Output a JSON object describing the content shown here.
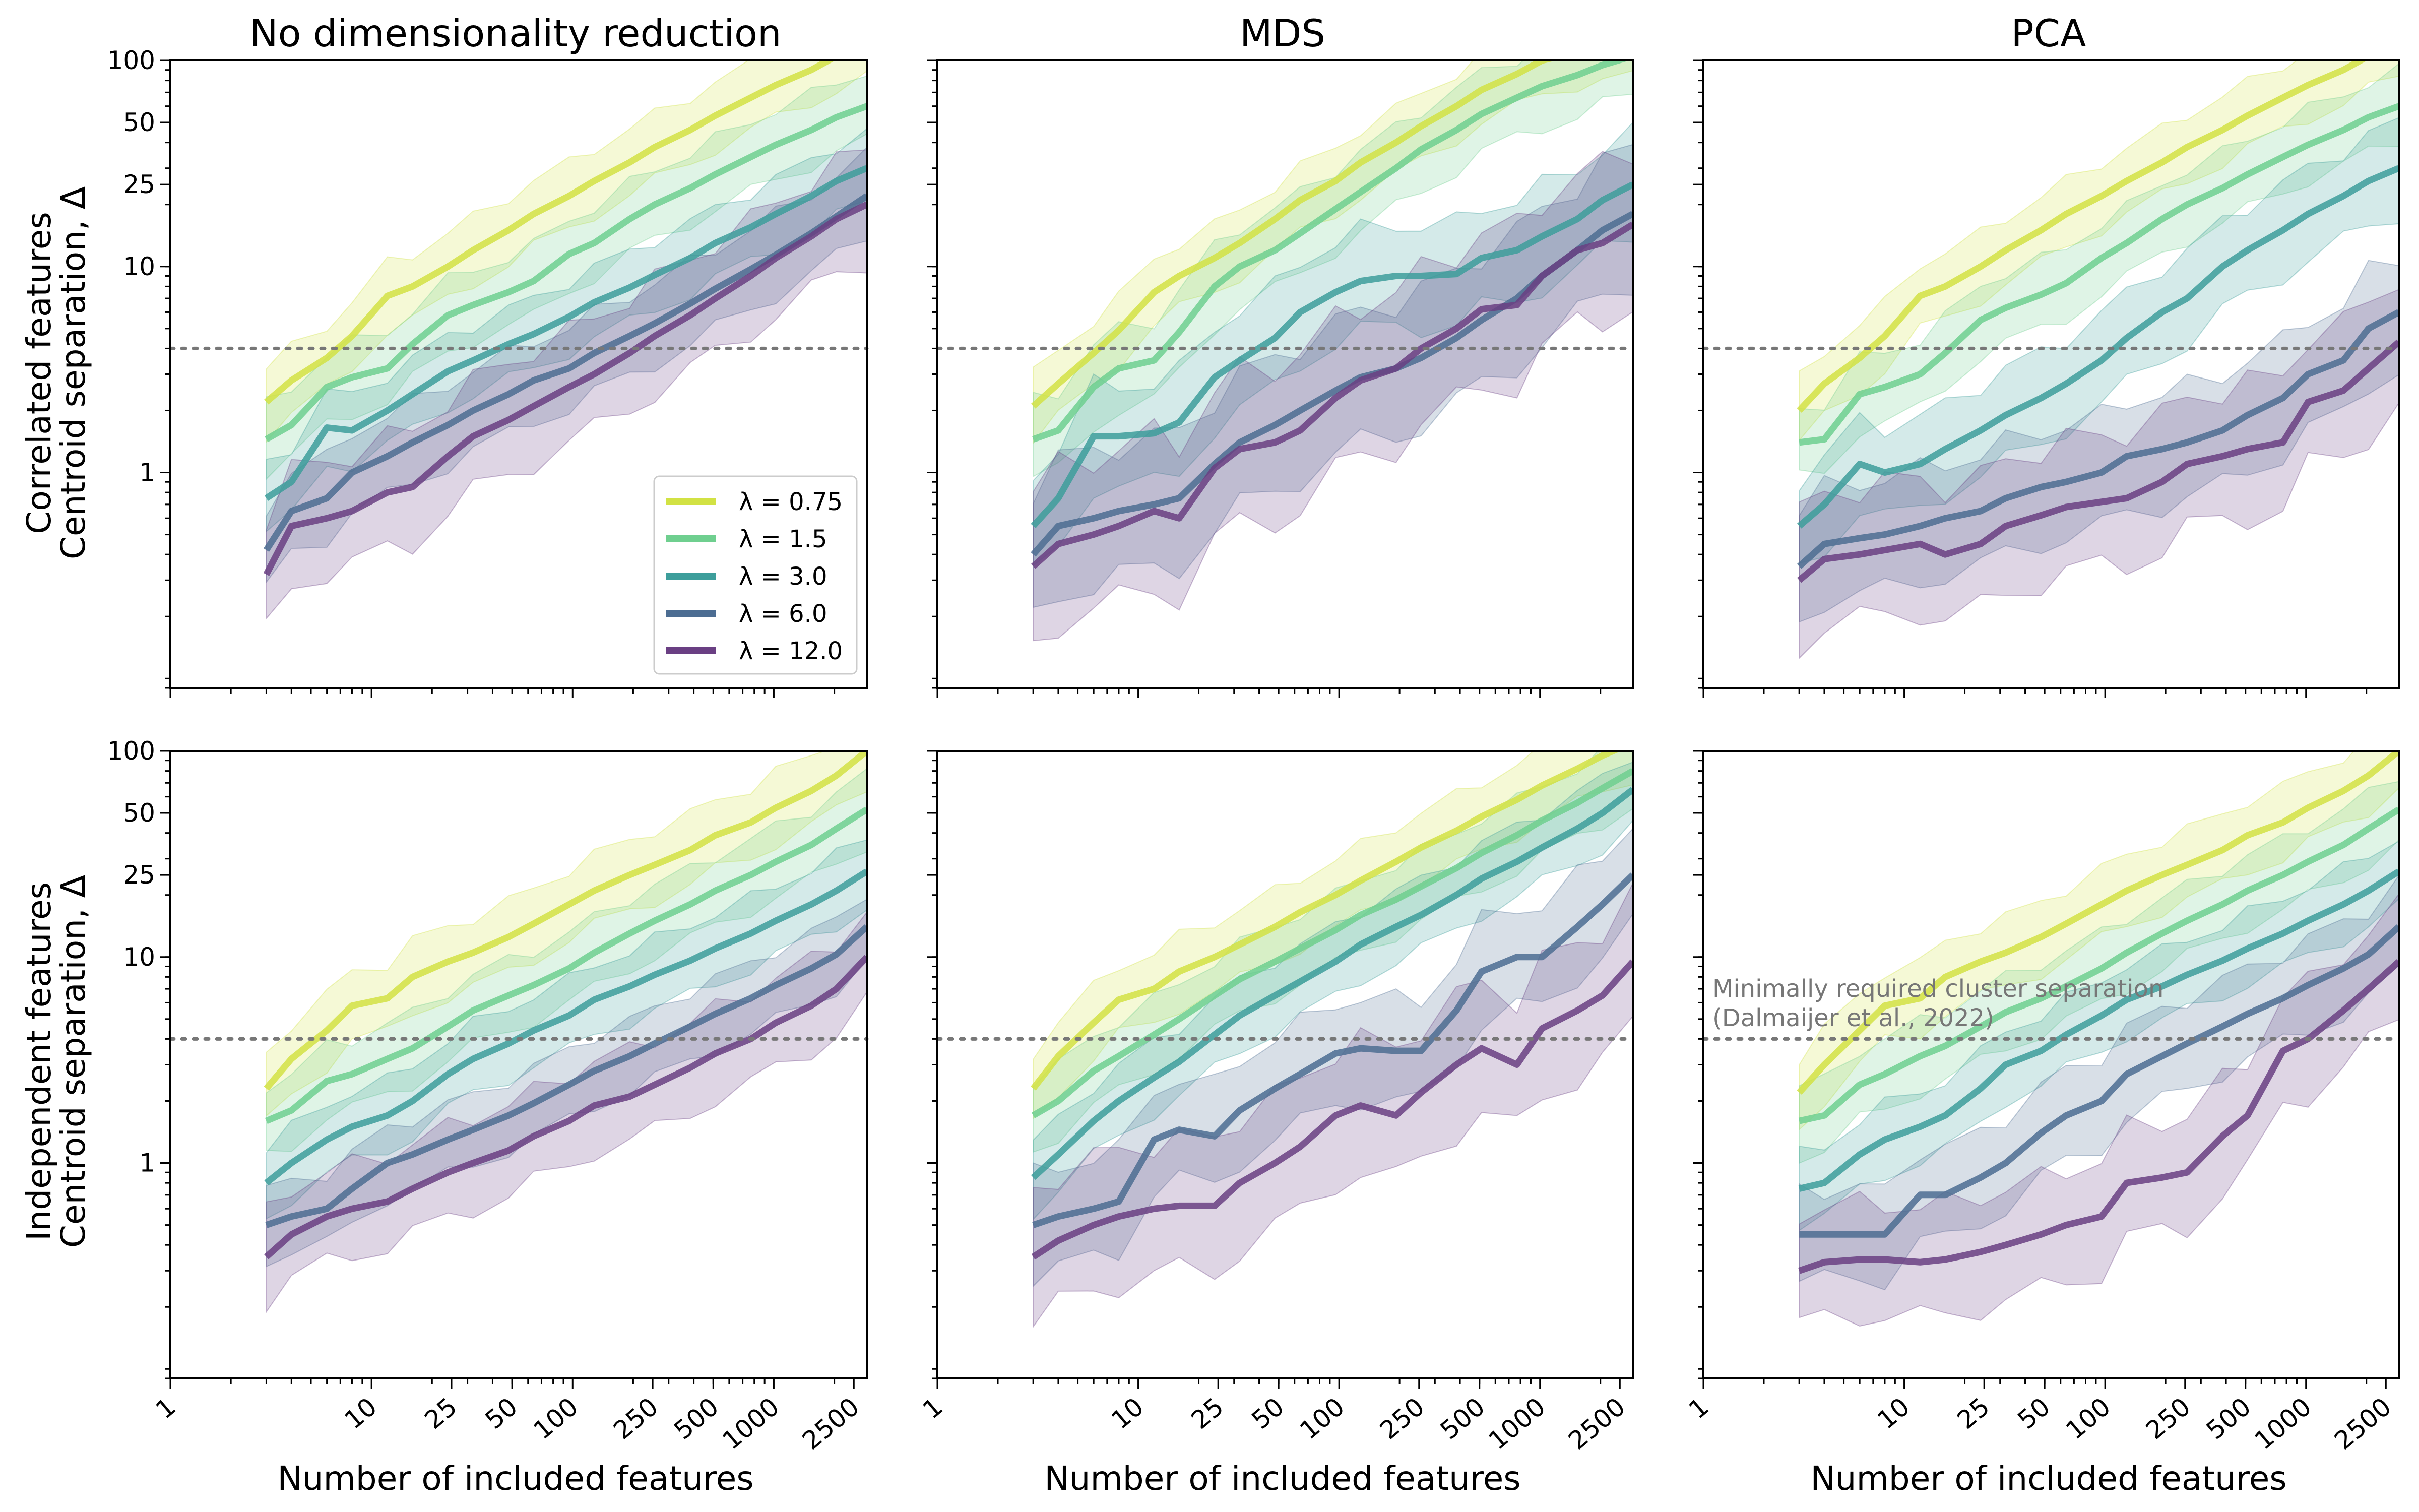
{
  "figure": {
    "col_titles": [
      "No dimensionality reduction",
      "MDS",
      "PCA"
    ],
    "row_labels": [
      [
        "Correlated features",
        "Centroid separation, Δ"
      ],
      [
        "Independent features",
        "Centroid separation, Δ"
      ]
    ],
    "xlabel": "Number of included features",
    "x_ticks": [
      1,
      10,
      25,
      50,
      100,
      250,
      500,
      1000,
      2500
    ],
    "x_tick_labels": [
      "1",
      "10",
      "25",
      "50",
      "100",
      "250",
      "500",
      "1000",
      "2500"
    ],
    "y_ticks": [
      1,
      10,
      25,
      50,
      100
    ],
    "y_tick_labels": [
      "1",
      "10",
      "25",
      "50",
      "100"
    ],
    "legend": [
      {
        "label": "λ = 0.75",
        "color": "#d2e244"
      },
      {
        "label": "λ = 1.5",
        "color": "#6fcf8f"
      },
      {
        "label": "λ = 3.0",
        "color": "#3d9e9b"
      },
      {
        "label": "λ = 6.0",
        "color": "#4c6d92"
      },
      {
        "label": "λ = 12.0",
        "color": "#6a3f83"
      }
    ],
    "annotation": {
      "line1": "Minimally required cluster separation",
      "line2": "(Dalmaijer et al., 2022)"
    }
  },
  "chart_data": [
    {
      "type": "line",
      "title": "No dimensionality reduction",
      "row": "Correlated features",
      "xlabel": "",
      "ylabel": "Centroid separation, Δ",
      "xscale": "log",
      "yscale": "log",
      "xlim": [
        1,
        2900
      ],
      "ylim": [
        0.09,
        100
      ],
      "reference_line": 4,
      "legend_position": "lower right",
      "x": [
        3,
        4,
        6,
        8,
        12,
        16,
        24,
        32,
        48,
        64,
        96,
        128,
        192,
        256,
        384,
        512,
        768,
        1024,
        1536,
        2048,
        2900
      ],
      "series": [
        {
          "name": "λ = 0.75",
          "values": [
            2.2,
            2.8,
            3.6,
            4.6,
            7.2,
            8,
            10,
            12,
            15,
            18,
            22,
            26,
            32,
            38,
            46,
            54,
            66,
            76,
            90,
            105,
            120
          ],
          "band": 0.28
        },
        {
          "name": "λ = 1.5",
          "values": [
            1.45,
            1.7,
            2.6,
            2.9,
            3.2,
            4.2,
            5.8,
            6.5,
            7.5,
            8.5,
            11.5,
            13,
            17,
            20,
            24,
            28,
            34,
            39,
            46,
            53,
            60
          ],
          "band": 0.3
        },
        {
          "name": "λ = 3.0",
          "values": [
            0.75,
            0.9,
            1.65,
            1.6,
            2,
            2.4,
            3.1,
            3.5,
            4.2,
            4.7,
            5.7,
            6.7,
            7.9,
            9.1,
            11,
            13,
            15.5,
            18,
            22,
            26,
            30
          ],
          "band": 0.3
        },
        {
          "name": "λ = 6.0",
          "values": [
            0.42,
            0.65,
            0.75,
            1,
            1.2,
            1.4,
            1.7,
            2,
            2.4,
            2.8,
            3.2,
            3.8,
            4.6,
            5.3,
            6.6,
            7.8,
            9.7,
            11.4,
            14.5,
            17.5,
            22
          ],
          "band": 0.35
        },
        {
          "name": "λ = 12.0",
          "values": [
            0.32,
            0.55,
            0.6,
            0.65,
            0.8,
            0.85,
            1.2,
            1.5,
            1.8,
            2.1,
            2.6,
            3,
            3.8,
            4.6,
            5.8,
            7,
            9,
            11,
            14,
            17,
            20
          ],
          "band": 0.5
        }
      ]
    },
    {
      "type": "line",
      "title": "MDS",
      "row": "Correlated features",
      "xlabel": "",
      "ylabel": "",
      "xscale": "log",
      "yscale": "log",
      "xlim": [
        1,
        2900
      ],
      "ylim": [
        0.09,
        100
      ],
      "reference_line": 4,
      "x": [
        3,
        4,
        6,
        8,
        12,
        16,
        24,
        32,
        48,
        64,
        96,
        128,
        192,
        256,
        384,
        512,
        768,
        1024,
        1536,
        2048,
        2900
      ],
      "series": [
        {
          "name": "λ = 0.75",
          "values": [
            2.1,
            2.7,
            3.8,
            4.9,
            7.5,
            9,
            11,
            13,
            17,
            21,
            26,
            32,
            40,
            48,
            60,
            72,
            86,
            100,
            110,
            115,
            120
          ],
          "band": 0.28
        },
        {
          "name": "λ = 1.5",
          "values": [
            1.45,
            1.6,
            2.6,
            3.2,
            3.5,
            4.8,
            8,
            10,
            12,
            14.5,
            19,
            23,
            30,
            37,
            46,
            55,
            66,
            75,
            85,
            95,
            105
          ],
          "band": 0.35
        },
        {
          "name": "λ = 3.0",
          "values": [
            0.55,
            0.75,
            1.5,
            1.5,
            1.55,
            1.75,
            2.9,
            3.5,
            4.5,
            6,
            7.5,
            8.5,
            9,
            9,
            9.2,
            11,
            12,
            14,
            17,
            21,
            25
          ],
          "band": 0.45
        },
        {
          "name": "λ = 6.0",
          "values": [
            0.4,
            0.55,
            0.6,
            0.65,
            0.7,
            0.75,
            1.1,
            1.4,
            1.7,
            2,
            2.5,
            2.9,
            3.2,
            3.6,
            4.5,
            5.5,
            7,
            9,
            12,
            15,
            18
          ],
          "band": 0.6
        },
        {
          "name": "λ = 12.0",
          "values": [
            0.35,
            0.45,
            0.5,
            0.55,
            0.65,
            0.6,
            1.05,
            1.3,
            1.4,
            1.6,
            2.3,
            2.8,
            3.2,
            4,
            5,
            6.2,
            6.5,
            9,
            12,
            13,
            16
          ],
          "band": 0.7
        }
      ]
    },
    {
      "type": "line",
      "title": "PCA",
      "row": "Correlated features",
      "xlabel": "",
      "ylabel": "",
      "xscale": "log",
      "yscale": "log",
      "xlim": [
        1,
        2900
      ],
      "ylim": [
        0.09,
        100
      ],
      "reference_line": 4,
      "x": [
        3,
        4,
        6,
        8,
        12,
        16,
        24,
        32,
        48,
        64,
        96,
        128,
        192,
        256,
        384,
        512,
        768,
        1024,
        1536,
        2048,
        2900
      ],
      "series": [
        {
          "name": "λ = 0.75",
          "values": [
            2,
            2.7,
            3.6,
            4.6,
            7.2,
            8,
            10,
            12,
            15,
            18,
            22,
            26,
            32,
            38,
            46,
            54,
            66,
            76,
            90,
            105,
            120
          ],
          "band": 0.28
        },
        {
          "name": "λ = 1.5",
          "values": [
            1.4,
            1.45,
            2.4,
            2.6,
            3,
            3.8,
            5.5,
            6.3,
            7.3,
            8.3,
            11,
            13,
            17,
            20,
            24,
            28,
            34,
            39,
            46,
            53,
            60
          ],
          "band": 0.3
        },
        {
          "name": "λ = 3.0",
          "values": [
            0.55,
            0.7,
            1.1,
            1,
            1.1,
            1.3,
            1.6,
            1.9,
            2.3,
            2.7,
            3.5,
            4.5,
            6,
            7,
            10,
            12,
            15,
            18,
            22,
            26,
            30
          ],
          "band": 0.4
        },
        {
          "name": "λ = 6.0",
          "values": [
            0.35,
            0.45,
            0.48,
            0.5,
            0.55,
            0.6,
            0.65,
            0.75,
            0.85,
            0.9,
            1,
            1.2,
            1.3,
            1.4,
            1.6,
            1.9,
            2.3,
            3,
            3.5,
            5,
            6
          ],
          "band": 0.5
        },
        {
          "name": "λ = 12.0",
          "values": [
            0.3,
            0.38,
            0.4,
            0.42,
            0.45,
            0.4,
            0.45,
            0.55,
            0.62,
            0.68,
            0.72,
            0.75,
            0.9,
            1.1,
            1.2,
            1.3,
            1.4,
            2.2,
            2.5,
            3.2,
            4.3
          ],
          "band": 0.6
        }
      ]
    },
    {
      "type": "line",
      "title": "No dimensionality reduction",
      "row": "Independent features",
      "xlabel": "Number of included features",
      "ylabel": "Centroid separation, Δ",
      "xscale": "log",
      "yscale": "log",
      "xlim": [
        1,
        2900
      ],
      "ylim": [
        0.09,
        100
      ],
      "reference_line": 4,
      "x": [
        3,
        4,
        6,
        8,
        12,
        16,
        24,
        32,
        48,
        64,
        96,
        128,
        192,
        256,
        384,
        512,
        768,
        1024,
        1536,
        2048,
        2900
      ],
      "series": [
        {
          "name": "λ = 0.75",
          "values": [
            2.3,
            3.2,
            4.4,
            5.8,
            6.3,
            8,
            9.5,
            10.5,
            12.5,
            14.5,
            18,
            21,
            25,
            28,
            33,
            39,
            45,
            53,
            64,
            76,
            100
          ],
          "band": 0.3
        },
        {
          "name": "λ = 1.5",
          "values": [
            1.6,
            1.8,
            2.5,
            2.7,
            3.2,
            3.6,
            4.6,
            5.5,
            6.5,
            7.3,
            8.8,
            10.5,
            13,
            15,
            18,
            21,
            25,
            29,
            35,
            42,
            52
          ],
          "band": 0.3
        },
        {
          "name": "λ = 3.0",
          "values": [
            0.8,
            1,
            1.3,
            1.5,
            1.7,
            2,
            2.7,
            3.2,
            3.8,
            4.4,
            5.2,
            6.2,
            7.2,
            8.2,
            9.6,
            11,
            13,
            15,
            18,
            21,
            26
          ],
          "band": 0.3
        },
        {
          "name": "λ = 6.0",
          "values": [
            0.5,
            0.55,
            0.6,
            0.75,
            1,
            1.1,
            1.3,
            1.45,
            1.7,
            1.95,
            2.4,
            2.8,
            3.3,
            3.8,
            4.6,
            5.3,
            6.3,
            7.3,
            8.8,
            10.3,
            14
          ],
          "band": 0.3
        },
        {
          "name": "λ = 12.0",
          "values": [
            0.35,
            0.45,
            0.55,
            0.6,
            0.65,
            0.75,
            0.9,
            1,
            1.15,
            1.35,
            1.6,
            1.9,
            2.1,
            2.4,
            2.9,
            3.4,
            4,
            4.8,
            5.8,
            7,
            10
          ],
          "band": 0.4
        }
      ]
    },
    {
      "type": "line",
      "title": "MDS",
      "row": "Independent features",
      "xlabel": "Number of included features",
      "ylabel": "",
      "xscale": "log",
      "yscale": "log",
      "xlim": [
        1,
        2900
      ],
      "ylim": [
        0.09,
        100
      ],
      "reference_line": 4,
      "x": [
        3,
        4,
        6,
        8,
        12,
        16,
        24,
        32,
        48,
        64,
        96,
        128,
        192,
        256,
        384,
        512,
        768,
        1024,
        1536,
        2048,
        2900
      ],
      "series": [
        {
          "name": "λ = 0.75",
          "values": [
            2.3,
            3.3,
            4.8,
            6.2,
            7,
            8.5,
            10,
            11.5,
            14,
            16.5,
            20,
            23.5,
            29,
            34,
            41,
            48,
            58,
            68,
            82,
            95,
            110
          ],
          "band": 0.3
        },
        {
          "name": "λ = 1.5",
          "values": [
            1.7,
            2,
            2.8,
            3.3,
            4.2,
            5,
            6.5,
            7.8,
            9.5,
            11,
            13.5,
            16,
            19,
            22,
            27,
            32,
            39,
            46,
            56,
            66,
            80
          ],
          "band": 0.3
        },
        {
          "name": "λ = 3.0",
          "values": [
            0.85,
            1.1,
            1.6,
            2,
            2.6,
            3.1,
            4.2,
            5.2,
            6.5,
            7.6,
            9.5,
            11.5,
            14,
            16,
            20,
            24,
            29,
            34,
            42,
            50,
            65
          ],
          "band": 0.3
        },
        {
          "name": "λ = 6.0",
          "values": [
            0.5,
            0.55,
            0.6,
            0.65,
            1.3,
            1.45,
            1.35,
            1.8,
            2.3,
            2.7,
            3.4,
            3.6,
            3.5,
            3.5,
            5.5,
            8.5,
            10,
            10,
            14,
            18,
            25
          ],
          "band": 0.45
        },
        {
          "name": "λ = 12.0",
          "values": [
            0.35,
            0.42,
            0.5,
            0.55,
            0.6,
            0.62,
            0.62,
            0.8,
            1,
            1.2,
            1.7,
            1.9,
            1.7,
            2.2,
            3,
            3.6,
            3,
            4.5,
            5.5,
            6.5,
            9.5
          ],
          "band": 0.6
        }
      ]
    },
    {
      "type": "line",
      "title": "PCA",
      "row": "Independent features",
      "xlabel": "Number of included features",
      "ylabel": "",
      "xscale": "log",
      "yscale": "log",
      "xlim": [
        1,
        2900
      ],
      "ylim": [
        0.09,
        100
      ],
      "reference_line": 4,
      "x": [
        3,
        4,
        6,
        8,
        12,
        16,
        24,
        32,
        48,
        64,
        96,
        128,
        192,
        256,
        384,
        512,
        768,
        1024,
        1536,
        2048,
        2900
      ],
      "series": [
        {
          "name": "λ = 0.75",
          "values": [
            2.2,
            3,
            4.4,
            5.8,
            6.3,
            8,
            9.5,
            10.5,
            12.5,
            14.5,
            18,
            21,
            25,
            28,
            33,
            39,
            45,
            53,
            64,
            76,
            100
          ],
          "band": 0.3
        },
        {
          "name": "λ = 1.5",
          "values": [
            1.6,
            1.7,
            2.4,
            2.7,
            3.3,
            3.7,
            4.6,
            5.4,
            6.3,
            7.2,
            8.8,
            10.5,
            13,
            15,
            18,
            21,
            25,
            29,
            35,
            42,
            52
          ],
          "band": 0.3
        },
        {
          "name": "λ = 3.0",
          "values": [
            0.75,
            0.8,
            1.1,
            1.3,
            1.5,
            1.7,
            2.3,
            3,
            3.5,
            4.2,
            5.2,
            6.2,
            7.2,
            8.2,
            9.6,
            11,
            13,
            15,
            18,
            21,
            26
          ],
          "band": 0.3
        },
        {
          "name": "λ = 6.0",
          "values": [
            0.45,
            0.45,
            0.45,
            0.45,
            0.7,
            0.7,
            0.85,
            1,
            1.4,
            1.7,
            2,
            2.7,
            3.3,
            3.8,
            4.6,
            5.3,
            6.3,
            7.3,
            8.8,
            10.3,
            14
          ],
          "band": 0.4
        },
        {
          "name": "λ = 12.0",
          "values": [
            0.3,
            0.33,
            0.34,
            0.34,
            0.33,
            0.34,
            0.37,
            0.4,
            0.45,
            0.5,
            0.55,
            0.8,
            0.85,
            0.9,
            1.35,
            1.7,
            3.5,
            4,
            5.5,
            7,
            9.5
          ],
          "band": 0.5
        }
      ]
    }
  ]
}
